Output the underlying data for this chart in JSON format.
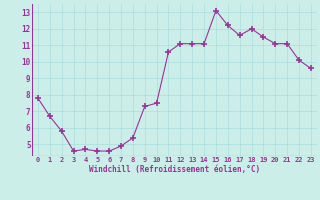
{
  "x": [
    0,
    1,
    2,
    3,
    4,
    5,
    6,
    7,
    8,
    9,
    10,
    11,
    12,
    13,
    14,
    15,
    16,
    17,
    18,
    19,
    20,
    21,
    22,
    23
  ],
  "y": [
    7.8,
    6.7,
    5.8,
    4.6,
    4.7,
    4.6,
    4.6,
    4.9,
    5.4,
    7.3,
    7.5,
    10.6,
    11.1,
    11.1,
    11.1,
    13.1,
    12.2,
    11.6,
    12.0,
    11.5,
    11.1,
    11.1,
    10.1,
    9.6
  ],
  "line_color": "#993399",
  "marker": "+",
  "marker_size": 4,
  "marker_lw": 1.2,
  "bg_color": "#cceee8",
  "grid_color": "#aadddd",
  "xlabel": "Windchill (Refroidissement éolien,°C)",
  "xlabel_color": "#993399",
  "tick_color": "#993399",
  "title": "",
  "xlim": [
    -0.5,
    23.5
  ],
  "ylim": [
    4.3,
    13.5
  ],
  "yticks": [
    5,
    6,
    7,
    8,
    9,
    10,
    11,
    12,
    13
  ],
  "xticks": [
    0,
    1,
    2,
    3,
    4,
    5,
    6,
    7,
    8,
    9,
    10,
    11,
    12,
    13,
    14,
    15,
    16,
    17,
    18,
    19,
    20,
    21,
    22,
    23
  ],
  "tick_fontsize": 5.0,
  "xlabel_fontsize": 5.5,
  "ytick_fontsize": 5.5
}
